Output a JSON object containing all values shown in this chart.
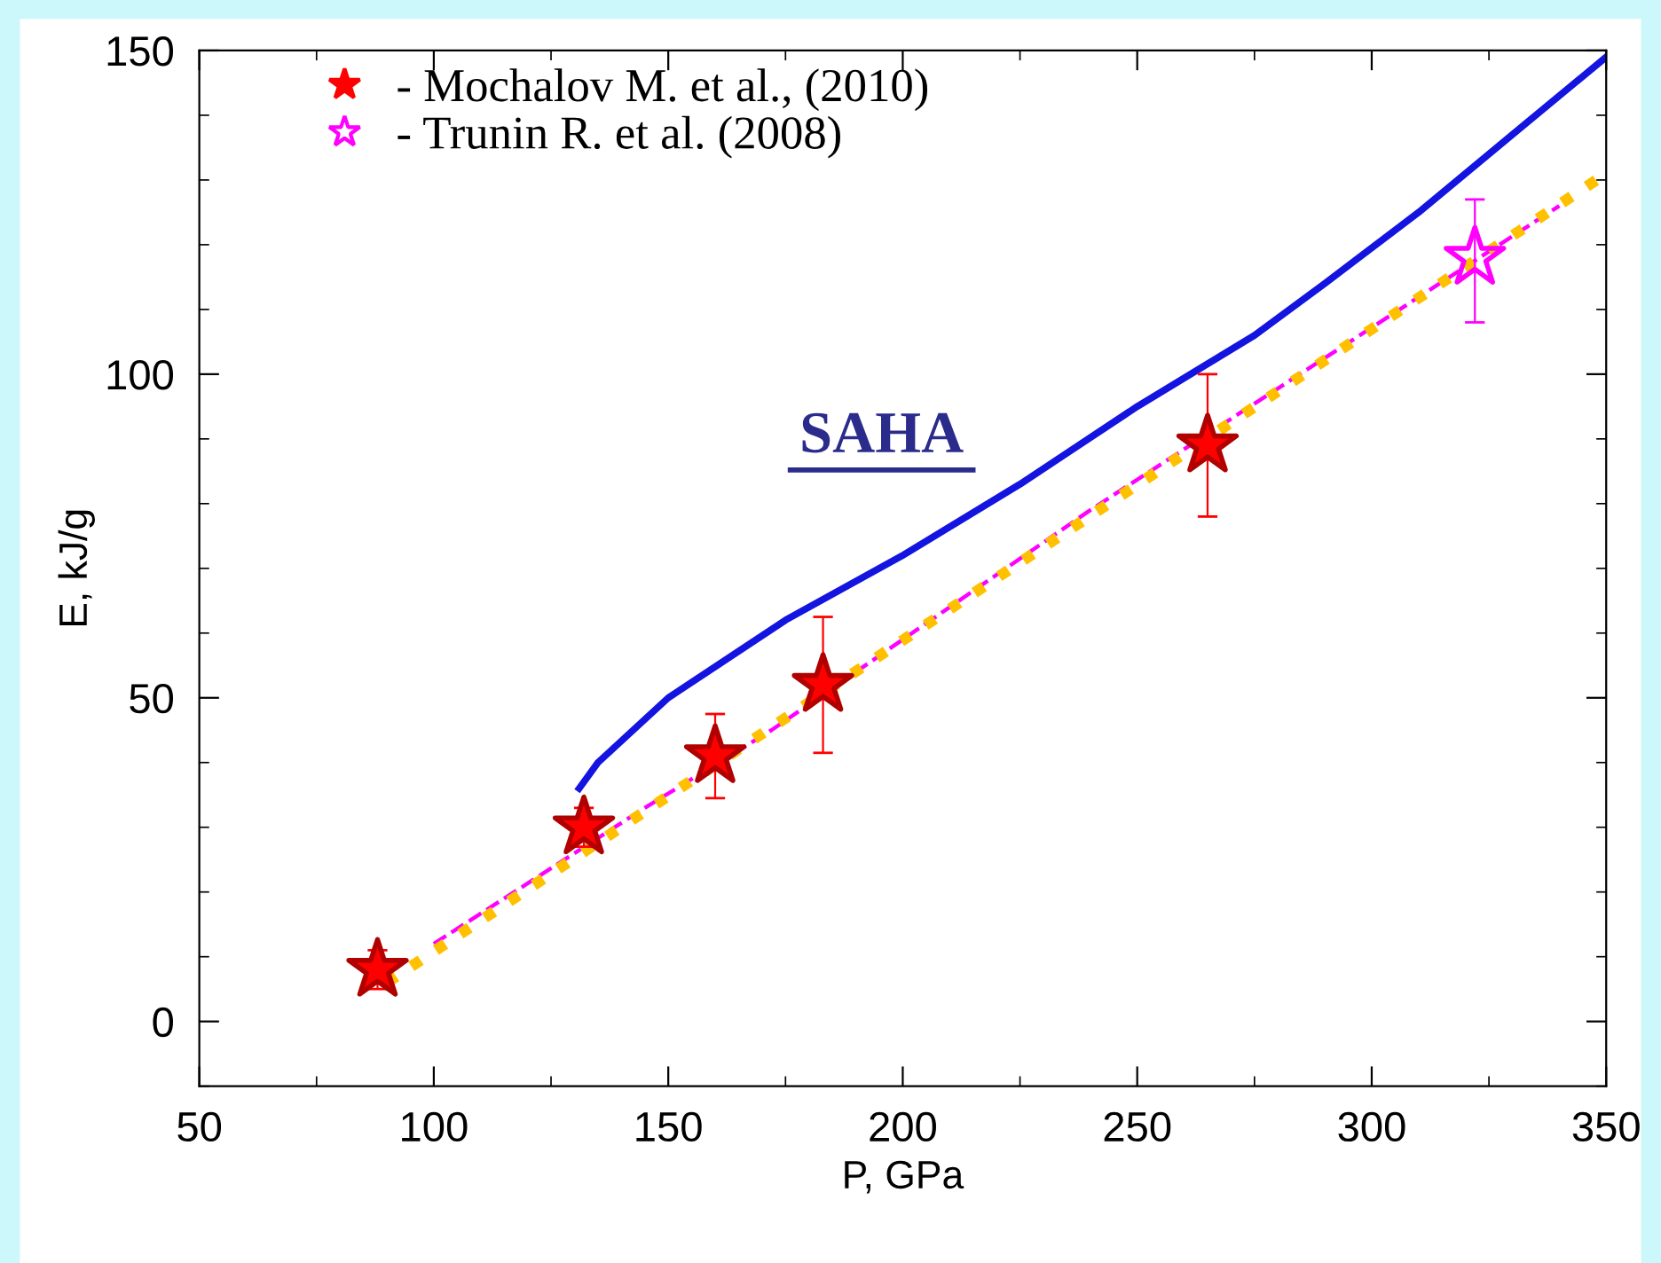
{
  "chart_data": {
    "type": "line",
    "xlabel": "P, GPa",
    "ylabel": "E, kJ/g",
    "xlim": [
      50,
      350
    ],
    "xticks": [
      50,
      100,
      150,
      200,
      250,
      300,
      350
    ],
    "ylim": [
      -10,
      150
    ],
    "yticks": [
      0,
      50,
      100,
      150
    ],
    "grid": false,
    "legend": "top left",
    "annotations": [
      "SAHA"
    ],
    "series": [
      {
        "color": "#1414e0",
        "line_style": "solid",
        "marker": "none",
        "x": [
          131,
          135,
          150,
          175,
          200,
          225,
          250,
          275,
          290,
          310,
          330,
          350
        ],
        "values": [
          36,
          40,
          50,
          62,
          72,
          83,
          95,
          106,
          114,
          125,
          137,
          149
        ]
      },
      {
        "color": "#ff00ff",
        "line_style": "dashed",
        "marker": "none",
        "x": [
          100,
          145,
          172,
          210,
          240,
          290,
          340
        ],
        "values": [
          12,
          33,
          45,
          64,
          79,
          102.5,
          126
        ]
      },
      {
        "color": "#ffc000",
        "line_style": "dotted",
        "marker": "none",
        "x": [
          90,
          350
        ],
        "values": [
          6,
          131
        ]
      },
      {
        "type": "scatter",
        "name": "- Mochalov M. et al., (2010)",
        "color": "#ff0000",
        "marker": "star",
        "x": [
          88,
          132,
          160,
          183,
          265
        ],
        "values": [
          8,
          30,
          41,
          52,
          89
        ],
        "errors": [
          3,
          3,
          6.5,
          10.5,
          11
        ]
      },
      {
        "type": "scatter",
        "name": "- Trunin R. et al. (2008)",
        "color": "#ff00ff",
        "marker": "star",
        "x": [
          322
        ],
        "values": [
          118
        ],
        "errors": [
          [
            108,
            127
          ]
        ]
      }
    ]
  }
}
